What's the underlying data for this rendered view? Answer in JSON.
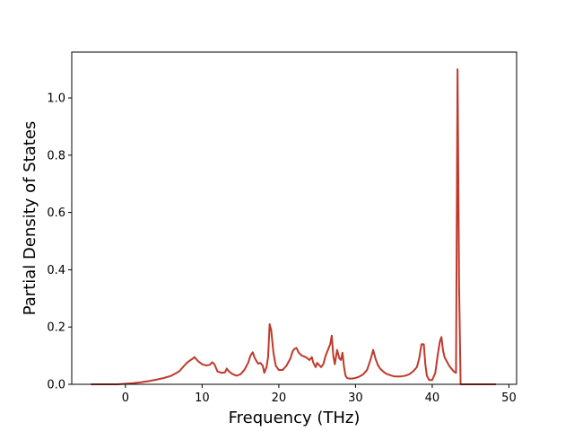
{
  "chart_data": {
    "type": "line",
    "title": "",
    "xlabel": "Frequency (THz)",
    "ylabel": "Partial Density of States",
    "xlim": [
      -7.0,
      51.0
    ],
    "ylim": [
      0.0,
      1.16
    ],
    "xticks": [
      0,
      10,
      20,
      30,
      40,
      50
    ],
    "yticks": [
      0.0,
      0.2,
      0.4,
      0.6,
      0.8,
      1.0
    ],
    "xtick_labels": [
      "0",
      "10",
      "20",
      "30",
      "40",
      "50"
    ],
    "ytick_labels": [
      "0.0",
      "0.2",
      "0.4",
      "0.6",
      "0.8",
      "1.0"
    ],
    "grid": false,
    "legend": "none",
    "series": [
      {
        "color": "#c0392b",
        "x": [
          -4.5,
          -1.0,
          0.0,
          1.0,
          2.0,
          3.0,
          4.0,
          5.0,
          6.0,
          7.0,
          7.5,
          8.0,
          8.5,
          8.8,
          9.0,
          9.5,
          10.0,
          10.5,
          11.0,
          11.3,
          11.6,
          12.0,
          12.5,
          13.0,
          13.2,
          13.5,
          14.0,
          14.5,
          15.0,
          15.5,
          16.0,
          16.3,
          16.6,
          16.8,
          17.0,
          17.3,
          17.6,
          17.9,
          18.1,
          18.4,
          18.6,
          18.8,
          19.0,
          19.3,
          19.6,
          20.0,
          20.5,
          21.0,
          21.5,
          21.8,
          22.0,
          22.3,
          22.6,
          23.0,
          23.5,
          24.0,
          24.3,
          24.5,
          24.8,
          25.0,
          25.5,
          25.8,
          26.1,
          26.4,
          26.7,
          26.9,
          27.1,
          27.3,
          27.6,
          27.9,
          28.1,
          28.3,
          28.5,
          28.7,
          28.9,
          29.2,
          29.5,
          30.0,
          30.5,
          31.0,
          31.5,
          32.0,
          32.3,
          32.6,
          32.9,
          33.2,
          33.6,
          34.0,
          34.5,
          35.0,
          35.5,
          36.0,
          36.5,
          37.0,
          37.5,
          38.0,
          38.3,
          38.6,
          38.9,
          39.1,
          39.3,
          39.6,
          40.0,
          40.4,
          40.7,
          41.0,
          41.2,
          41.4,
          41.6,
          41.9,
          42.2,
          42.5,
          42.8,
          43.1,
          43.3,
          43.5,
          43.7,
          43.9,
          44.2,
          45.0,
          48.3
        ],
        "y": [
          0.0,
          0.0,
          0.002,
          0.004,
          0.007,
          0.011,
          0.016,
          0.022,
          0.03,
          0.045,
          0.06,
          0.075,
          0.085,
          0.09,
          0.095,
          0.08,
          0.07,
          0.066,
          0.068,
          0.077,
          0.07,
          0.045,
          0.04,
          0.042,
          0.055,
          0.045,
          0.035,
          0.03,
          0.035,
          0.05,
          0.075,
          0.1,
          0.112,
          0.095,
          0.085,
          0.072,
          0.075,
          0.065,
          0.04,
          0.06,
          0.095,
          0.21,
          0.19,
          0.11,
          0.065,
          0.05,
          0.05,
          0.065,
          0.09,
          0.115,
          0.123,
          0.127,
          0.11,
          0.1,
          0.095,
          0.085,
          0.095,
          0.075,
          0.06,
          0.075,
          0.06,
          0.07,
          0.1,
          0.12,
          0.14,
          0.17,
          0.1,
          0.07,
          0.12,
          0.09,
          0.085,
          0.11,
          0.06,
          0.03,
          0.022,
          0.02,
          0.02,
          0.022,
          0.027,
          0.035,
          0.05,
          0.09,
          0.12,
          0.09,
          0.068,
          0.055,
          0.045,
          0.037,
          0.032,
          0.028,
          0.027,
          0.028,
          0.03,
          0.035,
          0.045,
          0.06,
          0.09,
          0.14,
          0.14,
          0.07,
          0.03,
          0.015,
          0.015,
          0.04,
          0.1,
          0.15,
          0.165,
          0.12,
          0.095,
          0.08,
          0.065,
          0.055,
          0.045,
          0.04,
          1.1,
          0.35,
          0.0,
          0.0,
          0.0,
          0.0,
          0.0
        ]
      }
    ]
  }
}
